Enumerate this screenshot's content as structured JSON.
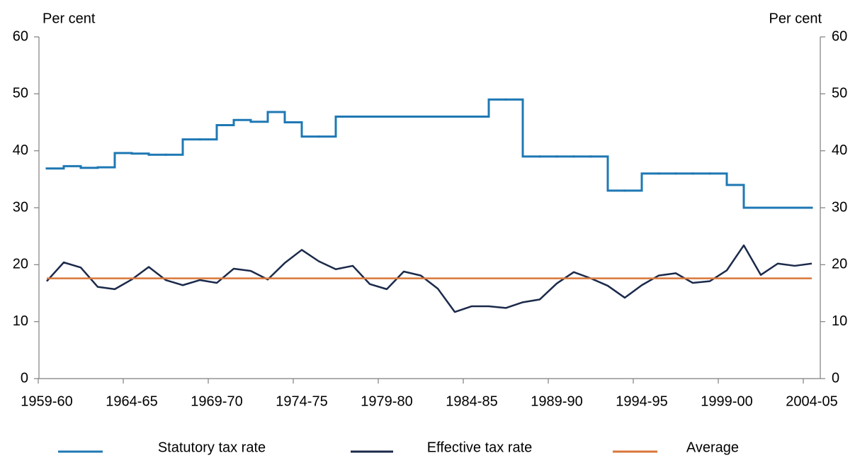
{
  "chart_data": {
    "type": "line",
    "y_label": "Per cent",
    "y2_label": "Per cent",
    "categories": [
      "1959-60",
      null,
      null,
      null,
      null,
      "1964-65",
      null,
      null,
      null,
      null,
      "1969-70",
      null,
      null,
      null,
      null,
      "1974-75",
      null,
      null,
      null,
      null,
      "1979-80",
      null,
      null,
      null,
      null,
      "1984-85",
      null,
      null,
      null,
      null,
      "1989-90",
      null,
      null,
      null,
      null,
      "1994-95",
      null,
      null,
      null,
      null,
      "1999-00",
      null,
      null,
      null,
      null,
      "2004-05"
    ],
    "series": [
      {
        "name": "Statutory tax rate",
        "color": "#1f78b4",
        "step": true,
        "values": [
          36.9,
          37.3,
          37.0,
          37.1,
          39.6,
          39.5,
          39.3,
          39.3,
          42,
          42,
          44.5,
          45.4,
          45.1,
          46.8,
          45.0,
          42.5,
          42.5,
          46,
          46,
          46,
          46,
          46,
          46,
          46,
          46,
          46,
          49,
          49,
          39,
          39,
          39,
          39,
          39,
          33,
          33,
          36,
          36,
          36,
          36,
          36,
          34,
          30,
          30,
          30,
          30,
          30
        ]
      },
      {
        "name": "Effective tax rate",
        "color": "#1b2a4a",
        "values": [
          17.1,
          20.4,
          19.5,
          16.1,
          15.7,
          17.4,
          19.6,
          17.3,
          16.4,
          17.3,
          16.8,
          19.3,
          18.9,
          17.4,
          20.3,
          22.6,
          20.6,
          19.2,
          19.8,
          16.6,
          15.7,
          18.8,
          18.1,
          15.8,
          11.7,
          12.7,
          12.7,
          12.4,
          13.4,
          13.9,
          16.7,
          18.7,
          17.6,
          16.3,
          14.2,
          16.4,
          18.1,
          18.5,
          16.8,
          17.1,
          19.0,
          23.4,
          18.2,
          20.2,
          19.8,
          20.2
        ]
      },
      {
        "name": "Average",
        "color": "#d9773a",
        "values": [
          17.6,
          17.6,
          17.6,
          17.6,
          17.6,
          17.6,
          17.6,
          17.6,
          17.6,
          17.6,
          17.6,
          17.6,
          17.6,
          17.6,
          17.6,
          17.6,
          17.6,
          17.6,
          17.6,
          17.6,
          17.6,
          17.6,
          17.6,
          17.6,
          17.6,
          17.6,
          17.6,
          17.6,
          17.6,
          17.6,
          17.6,
          17.6,
          17.6,
          17.6,
          17.6,
          17.6,
          17.6,
          17.6,
          17.6,
          17.6,
          17.6,
          17.6,
          17.6,
          17.6,
          17.6,
          17.6
        ]
      }
    ],
    "ylim": [
      0,
      60
    ],
    "yticks": [
      0,
      10,
      20,
      30,
      40,
      50,
      60
    ],
    "y2lim": [
      0,
      60
    ],
    "y2ticks": [
      0,
      10,
      20,
      30,
      40,
      50,
      60
    ],
    "grid": false,
    "legend": "bottom"
  }
}
